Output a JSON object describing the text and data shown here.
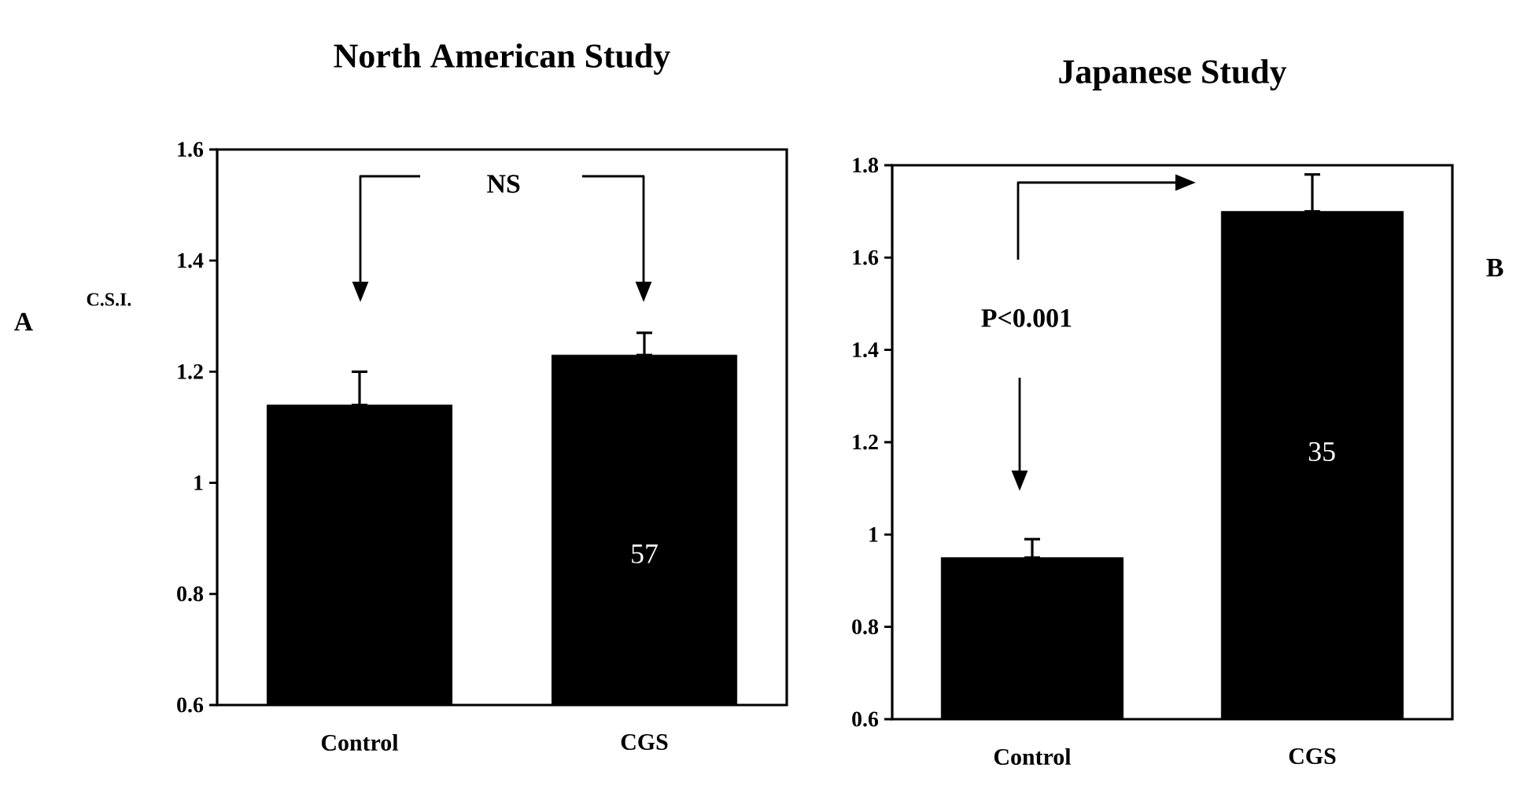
{
  "chart_data": [
    {
      "type": "bar",
      "title": "North American Study",
      "ylabel": "C.S.I.",
      "categories": [
        "Control",
        "CGS"
      ],
      "values": [
        1.14,
        1.23
      ],
      "errors": [
        [
          1.14,
          1.2
        ],
        [
          1.23,
          1.27
        ]
      ],
      "color": "#000000",
      "ylim": [
        0.6,
        1.6
      ],
      "yticks": [
        0.6,
        0.8,
        1,
        1.2,
        1.4,
        1.6
      ],
      "annotations": [
        "NS",
        "57",
        "A"
      ]
    },
    {
      "type": "bar",
      "title": "Japanese Study",
      "categories": [
        "Control",
        "CGS"
      ],
      "values": [
        0.95,
        1.7
      ],
      "errors": [
        [
          0.95,
          0.99
        ],
        [
          1.7,
          1.78
        ]
      ],
      "color": "#000000",
      "ylim": [
        0.6,
        1.8
      ],
      "yticks": [
        0.6,
        0.8,
        1,
        1.2,
        1.4,
        1.6,
        1.8
      ],
      "annotations": [
        "P<0.001",
        "35",
        "B"
      ]
    }
  ]
}
